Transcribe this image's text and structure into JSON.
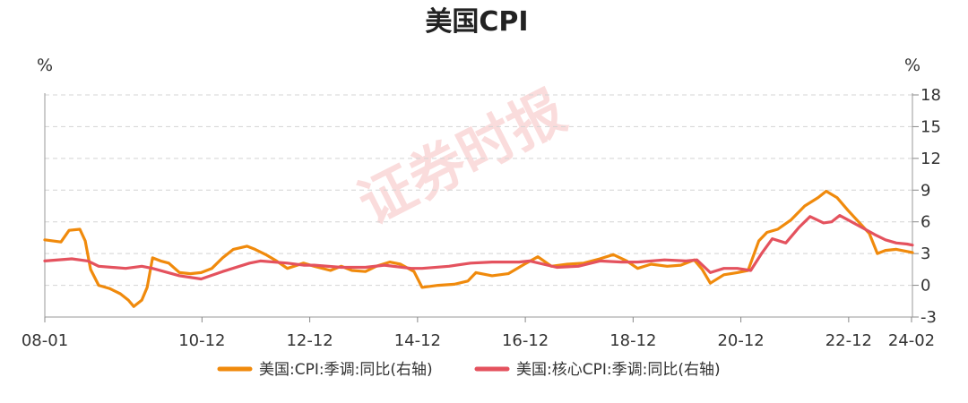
{
  "chart_data": {
    "type": "line",
    "title": "美国CPI",
    "left_unit": "%",
    "right_unit": "%",
    "watermark": "证券时报",
    "x_labels": [
      "08-01",
      "10-12",
      "12-12",
      "14-12",
      "16-12",
      "18-12",
      "20-12",
      "22-12",
      "24-02"
    ],
    "y_ticks": [
      -3,
      0,
      3,
      6,
      9,
      12,
      15,
      18
    ],
    "ylim": [
      -3,
      18
    ],
    "xlim": [
      2008.0,
      2024.1
    ],
    "grid": "horizontal-dashed",
    "legend_position": "bottom",
    "series": [
      {
        "name": "美国:CPI:季调:同比(右轴)",
        "color": "#f08a0c",
        "points": [
          [
            2008.0,
            4.3
          ],
          [
            2008.3,
            4.1
          ],
          [
            2008.45,
            5.2
          ],
          [
            2008.65,
            5.3
          ],
          [
            2008.75,
            4.2
          ],
          [
            2008.85,
            1.5
          ],
          [
            2009.0,
            0.0
          ],
          [
            2009.2,
            -0.3
          ],
          [
            2009.4,
            -0.8
          ],
          [
            2009.55,
            -1.4
          ],
          [
            2009.65,
            -2.0
          ],
          [
            2009.8,
            -1.4
          ],
          [
            2009.9,
            -0.2
          ],
          [
            2010.0,
            2.6
          ],
          [
            2010.15,
            2.3
          ],
          [
            2010.3,
            2.1
          ],
          [
            2010.5,
            1.2
          ],
          [
            2010.7,
            1.1
          ],
          [
            2010.9,
            1.2
          ],
          [
            2011.1,
            1.6
          ],
          [
            2011.3,
            2.6
          ],
          [
            2011.5,
            3.4
          ],
          [
            2011.75,
            3.7
          ],
          [
            2011.9,
            3.4
          ],
          [
            2012.1,
            2.9
          ],
          [
            2012.3,
            2.3
          ],
          [
            2012.5,
            1.6
          ],
          [
            2012.8,
            2.1
          ],
          [
            2013.0,
            1.8
          ],
          [
            2013.3,
            1.4
          ],
          [
            2013.5,
            1.8
          ],
          [
            2013.7,
            1.4
          ],
          [
            2013.95,
            1.3
          ],
          [
            2014.15,
            1.8
          ],
          [
            2014.4,
            2.2
          ],
          [
            2014.6,
            2.0
          ],
          [
            2014.85,
            1.3
          ],
          [
            2015.0,
            -0.2
          ],
          [
            2015.3,
            0.0
          ],
          [
            2015.6,
            0.1
          ],
          [
            2015.85,
            0.4
          ],
          [
            2016.0,
            1.2
          ],
          [
            2016.3,
            0.9
          ],
          [
            2016.6,
            1.1
          ],
          [
            2016.9,
            2.0
          ],
          [
            2017.15,
            2.7
          ],
          [
            2017.4,
            1.8
          ],
          [
            2017.7,
            2.0
          ],
          [
            2018.0,
            2.1
          ],
          [
            2018.3,
            2.5
          ],
          [
            2018.55,
            2.9
          ],
          [
            2018.8,
            2.3
          ],
          [
            2019.0,
            1.6
          ],
          [
            2019.25,
            2.0
          ],
          [
            2019.55,
            1.8
          ],
          [
            2019.8,
            1.9
          ],
          [
            2020.05,
            2.4
          ],
          [
            2020.2,
            1.5
          ],
          [
            2020.35,
            0.2
          ],
          [
            2020.6,
            1.0
          ],
          [
            2020.85,
            1.2
          ],
          [
            2021.05,
            1.4
          ],
          [
            2021.25,
            4.2
          ],
          [
            2021.4,
            5.0
          ],
          [
            2021.6,
            5.3
          ],
          [
            2021.85,
            6.2
          ],
          [
            2022.1,
            7.5
          ],
          [
            2022.35,
            8.3
          ],
          [
            2022.5,
            8.9
          ],
          [
            2022.7,
            8.3
          ],
          [
            2022.9,
            7.1
          ],
          [
            2023.1,
            6.0
          ],
          [
            2023.3,
            4.9
          ],
          [
            2023.45,
            3.0
          ],
          [
            2023.6,
            3.3
          ],
          [
            2023.8,
            3.4
          ],
          [
            2024.0,
            3.2
          ],
          [
            2024.1,
            3.1
          ]
        ]
      },
      {
        "name": "美国:核心CPI:季调:同比(右轴)",
        "color": "#e4525e",
        "points": [
          [
            2008.0,
            2.3
          ],
          [
            2008.5,
            2.5
          ],
          [
            2008.8,
            2.3
          ],
          [
            2009.0,
            1.8
          ],
          [
            2009.5,
            1.6
          ],
          [
            2009.8,
            1.8
          ],
          [
            2010.0,
            1.6
          ],
          [
            2010.5,
            0.9
          ],
          [
            2010.9,
            0.6
          ],
          [
            2011.3,
            1.3
          ],
          [
            2011.8,
            2.1
          ],
          [
            2012.0,
            2.3
          ],
          [
            2012.5,
            2.1
          ],
          [
            2012.8,
            1.9
          ],
          [
            2013.0,
            1.9
          ],
          [
            2013.5,
            1.7
          ],
          [
            2013.95,
            1.7
          ],
          [
            2014.3,
            1.9
          ],
          [
            2014.8,
            1.6
          ],
          [
            2015.0,
            1.6
          ],
          [
            2015.5,
            1.8
          ],
          [
            2015.9,
            2.1
          ],
          [
            2016.3,
            2.2
          ],
          [
            2016.8,
            2.2
          ],
          [
            2017.0,
            2.3
          ],
          [
            2017.5,
            1.7
          ],
          [
            2017.9,
            1.8
          ],
          [
            2018.3,
            2.3
          ],
          [
            2018.7,
            2.2
          ],
          [
            2019.0,
            2.2
          ],
          [
            2019.5,
            2.4
          ],
          [
            2019.9,
            2.3
          ],
          [
            2020.1,
            2.4
          ],
          [
            2020.35,
            1.2
          ],
          [
            2020.6,
            1.6
          ],
          [
            2020.85,
            1.6
          ],
          [
            2021.1,
            1.4
          ],
          [
            2021.3,
            3.0
          ],
          [
            2021.5,
            4.4
          ],
          [
            2021.75,
            4.0
          ],
          [
            2022.0,
            5.5
          ],
          [
            2022.2,
            6.5
          ],
          [
            2022.45,
            5.9
          ],
          [
            2022.6,
            6.0
          ],
          [
            2022.75,
            6.6
          ],
          [
            2022.9,
            6.2
          ],
          [
            2023.15,
            5.5
          ],
          [
            2023.4,
            4.8
          ],
          [
            2023.6,
            4.3
          ],
          [
            2023.8,
            4.0
          ],
          [
            2024.0,
            3.9
          ],
          [
            2024.1,
            3.8
          ]
        ]
      }
    ]
  }
}
